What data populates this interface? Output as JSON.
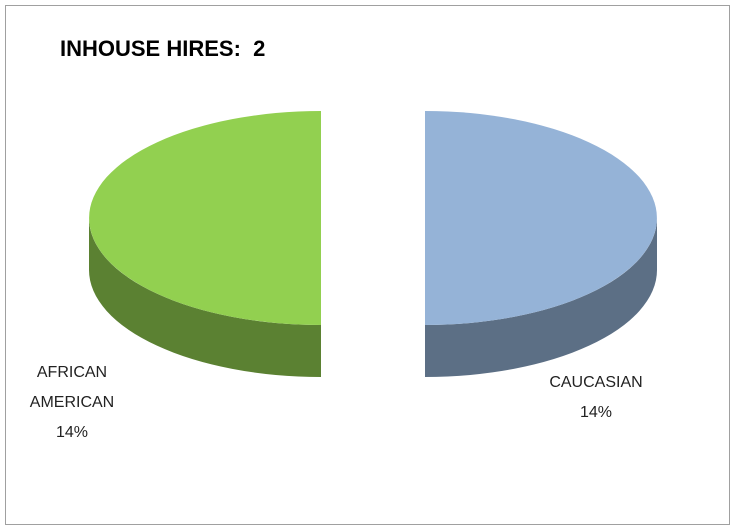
{
  "chart_data": {
    "type": "pie",
    "title": "INHOUSE HIRES:  2",
    "categories": [
      "CAUCASIAN",
      "AFRICAN AMERICAN"
    ],
    "values": [
      14,
      14
    ],
    "value_labels": [
      "14%",
      "14%"
    ],
    "colors": [
      "#95b3d7",
      "#92d050"
    ]
  }
}
